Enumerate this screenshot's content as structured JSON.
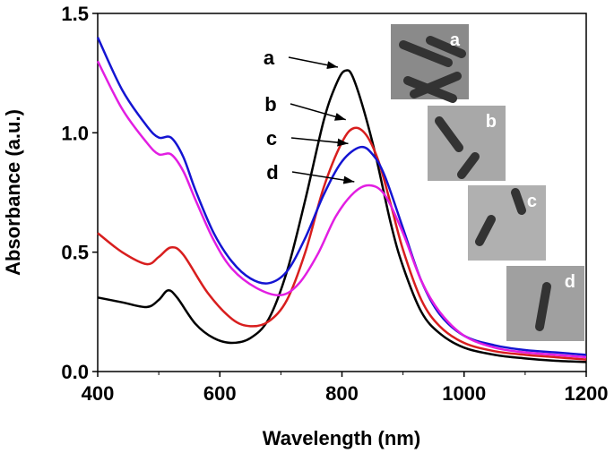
{
  "chart_data": {
    "type": "line",
    "title": "",
    "xlabel": "Wavelength (nm)",
    "ylabel": "Absorbance (a.u.)",
    "xlim": [
      400,
      1200
    ],
    "ylim": [
      0,
      1.5
    ],
    "xticks": [
      400,
      600,
      800,
      1000,
      1200
    ],
    "xtick_labels": [
      "400",
      "600",
      "800",
      "1000",
      "1200"
    ],
    "yticks": [
      0,
      0.5,
      1.0,
      1.5
    ],
    "ytick_labels": [
      "0.0",
      "0.5",
      "1.0",
      "1.5"
    ],
    "grid": false,
    "series": [
      {
        "name": "a",
        "color": "#000000",
        "x": [
          400,
          440,
          480,
          500,
          515,
          530,
          560,
          590,
          620,
          650,
          680,
          710,
          740,
          770,
          790,
          805,
          820,
          850,
          880,
          900,
          930,
          960,
          1000,
          1050,
          1100,
          1150,
          1200
        ],
        "y": [
          0.31,
          0.29,
          0.27,
          0.3,
          0.34,
          0.31,
          0.2,
          0.14,
          0.12,
          0.14,
          0.22,
          0.42,
          0.72,
          1.05,
          1.2,
          1.26,
          1.22,
          0.96,
          0.62,
          0.44,
          0.25,
          0.16,
          0.1,
          0.07,
          0.055,
          0.045,
          0.04
        ]
      },
      {
        "name": "b",
        "color": "#d81e1e",
        "x": [
          400,
          440,
          480,
          500,
          520,
          540,
          580,
          620,
          650,
          680,
          710,
          740,
          770,
          800,
          820,
          840,
          860,
          880,
          900,
          930,
          960,
          1000,
          1050,
          1100,
          1150,
          1200
        ],
        "y": [
          0.58,
          0.5,
          0.45,
          0.48,
          0.52,
          0.49,
          0.33,
          0.22,
          0.19,
          0.21,
          0.3,
          0.5,
          0.77,
          0.96,
          1.02,
          0.99,
          0.88,
          0.7,
          0.51,
          0.3,
          0.19,
          0.12,
          0.085,
          0.07,
          0.06,
          0.05
        ]
      },
      {
        "name": "c",
        "color": "#1414d2",
        "x": [
          400,
          440,
          480,
          500,
          520,
          540,
          560,
          590,
          620,
          650,
          680,
          710,
          740,
          770,
          800,
          830,
          850,
          870,
          900,
          930,
          960,
          1000,
          1050,
          1100,
          1150,
          1200
        ],
        "y": [
          1.4,
          1.18,
          1.03,
          0.98,
          0.98,
          0.9,
          0.76,
          0.58,
          0.46,
          0.39,
          0.37,
          0.42,
          0.56,
          0.74,
          0.88,
          0.94,
          0.91,
          0.82,
          0.6,
          0.38,
          0.24,
          0.15,
          0.11,
          0.09,
          0.08,
          0.07
        ]
      },
      {
        "name": "d",
        "color": "#e21ee2",
        "x": [
          400,
          440,
          480,
          500,
          520,
          540,
          560,
          590,
          620,
          660,
          700,
          730,
          760,
          790,
          820,
          845,
          870,
          900,
          930,
          960,
          1000,
          1050,
          1100,
          1150,
          1200
        ],
        "y": [
          1.3,
          1.1,
          0.96,
          0.91,
          0.91,
          0.84,
          0.72,
          0.55,
          0.43,
          0.35,
          0.32,
          0.37,
          0.49,
          0.65,
          0.75,
          0.78,
          0.74,
          0.58,
          0.38,
          0.25,
          0.15,
          0.1,
          0.08,
          0.07,
          0.06
        ]
      }
    ],
    "annotations": [
      {
        "label": "a",
        "points_to": [
          805,
          1.26
        ]
      },
      {
        "label": "b",
        "points_to": [
          818,
          1.04
        ]
      },
      {
        "label": "c",
        "points_to": [
          822,
          0.94
        ]
      },
      {
        "label": "d",
        "points_to": [
          832,
          0.78
        ]
      }
    ],
    "insets": [
      {
        "label": "a",
        "description": "TEM image"
      },
      {
        "label": "b",
        "description": "TEM image"
      },
      {
        "label": "c",
        "description": "TEM image"
      },
      {
        "label": "d",
        "description": "TEM image"
      }
    ]
  }
}
